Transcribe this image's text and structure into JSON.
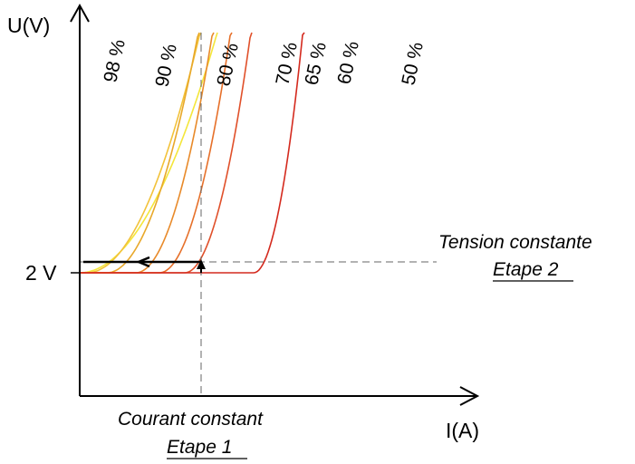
{
  "chart_data": {
    "type": "line",
    "title": "",
    "xlabel": "I(A)",
    "ylabel": "U(V)",
    "y_tick_label": "2 V",
    "grid": false,
    "legend": "none",
    "series": [
      {
        "label": "98 %",
        "color": "#f4e63a",
        "k": 0.0115
      },
      {
        "label": "90 %",
        "color": "#f2c23a",
        "k": 0.017
      },
      {
        "label": "80 %",
        "color": "#e8a82a",
        "k": 0.026
      },
      {
        "label": "70 %",
        "color": "#e88a2a",
        "k": 0.037
      },
      {
        "label": "65 %",
        "color": "#e6702a",
        "k": 0.043
      },
      {
        "label": "60 %",
        "color": "#e0502a",
        "k": 0.05
      },
      {
        "label": "50 %",
        "color": "#d42a1e",
        "k": 0.09
      }
    ],
    "annotations": {
      "tension_title": "Tension constante",
      "tension_step": "Etape 2",
      "courant_title": "Courant constant",
      "courant_step": "Etape 1"
    }
  }
}
